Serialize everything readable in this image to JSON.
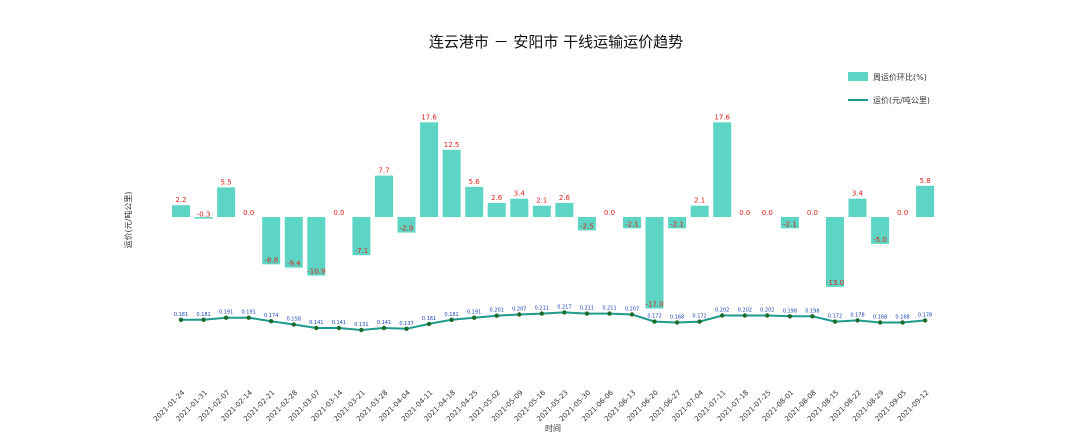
{
  "chart_data": {
    "type": "bar",
    "title": "连云港市 － 安阳市 干线运输运价趋势",
    "ylabel": "运价(元/吨公里)",
    "xlabel": "时间",
    "legend": {
      "placement": "top-right",
      "entries": [
        "周运价环比(%)",
        "运价(元/吨公里)"
      ]
    },
    "grid": false,
    "colors": {
      "bar": "#5dd5c5",
      "line": "#1f9a8e",
      "point": "#1a6b2c",
      "bar_label": "#e0201b",
      "point_label": "#1a3fbf"
    },
    "categories": [
      "2021-01-24",
      "2021-01-31",
      "2021-02-07",
      "2021-02-14",
      "2021-02-21",
      "2021-02-28",
      "2021-03-07",
      "2021-03-14",
      "2021-03-21",
      "2021-03-28",
      "2021-04-04",
      "2021-04-11",
      "2021-04-18",
      "2021-04-25",
      "2021-05-02",
      "2021-05-09",
      "2021-05-16",
      "2021-05-23",
      "2021-05-30",
      "2021-06-06",
      "2021-06-13",
      "2021-06-20",
      "2021-06-27",
      "2021-07-04",
      "2021-07-11",
      "2021-07-18",
      "2021-07-25",
      "2021-08-01",
      "2021-08-08",
      "2021-08-15",
      "2021-08-22",
      "2021-08-29",
      "2021-09-05",
      "2021-09-12"
    ],
    "series": [
      {
        "name": "周运价环比(%)",
        "type": "bar",
        "values": [
          2.2,
          -0.3,
          5.5,
          0.0,
          -8.8,
          -9.4,
          -10.9,
          0.0,
          -7.1,
          7.7,
          -2.9,
          17.6,
          12.5,
          5.6,
          2.6,
          3.4,
          2.1,
          2.6,
          -2.5,
          0.0,
          -2.1,
          -17.0,
          -2.1,
          2.1,
          17.6,
          0.0,
          0.0,
          -2.1,
          0.0,
          -13.0,
          3.4,
          -5.0,
          0.0,
          5.8
        ],
        "labels": [
          "2.2",
          "-0.3",
          "5.5",
          "0.0",
          "-8.8",
          "-9.4",
          "-10.9",
          "0.0",
          "-7.1",
          "7.7",
          "-2.9",
          "17.6",
          "12.5",
          "5.6",
          "2.6",
          "3.4",
          "2.1",
          "2.6",
          "-2.5",
          "0.0",
          "-2.1",
          "-17.0",
          "-2.1",
          "2.1",
          "17.6",
          "0.0",
          "0.0",
          "-2.1",
          "0.0",
          "-13.0",
          "3.4",
          "-5.0",
          "0.0",
          "5.8"
        ]
      },
      {
        "name": "运价(元/吨公里)",
        "type": "line",
        "values": [
          0.181,
          0.181,
          0.191,
          0.191,
          0.174,
          0.158,
          0.141,
          0.141,
          0.131,
          0.141,
          0.137,
          0.161,
          0.181,
          0.191,
          0.201,
          0.207,
          0.211,
          0.217,
          0.211,
          0.211,
          0.207,
          0.172,
          0.168,
          0.172,
          0.202,
          0.202,
          0.202,
          0.198,
          0.198,
          0.172,
          0.178,
          0.168,
          0.168,
          0.178
        ],
        "labels": [
          "0.181",
          "0.181",
          "0.191",
          "0.191",
          "0.174",
          "0.158",
          "0.141",
          "0.141",
          "0.131",
          "0.141",
          "0.137",
          "0.161",
          "0.181",
          "0.191",
          "0.201",
          "0.207",
          "0.211",
          "0.217",
          "0.211",
          "0.211",
          "0.207",
          "0.172",
          "0.168",
          "0.172",
          "0.202",
          "0.202",
          "0.202",
          "0.198",
          "0.198",
          "0.172",
          "0.178",
          "0.168",
          "0.168",
          "0.178"
        ]
      }
    ]
  }
}
